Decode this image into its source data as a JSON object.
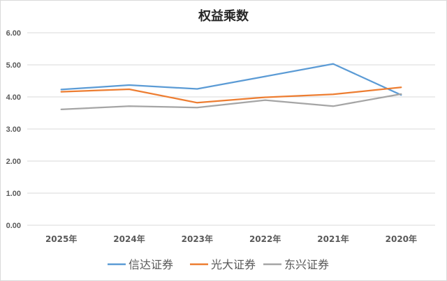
{
  "chart_data": {
    "type": "line",
    "title": "权益乘数",
    "categories": [
      "2025年",
      "2024年",
      "2023年",
      "2022年",
      "2021年",
      "2020年"
    ],
    "ylim": [
      0,
      6
    ],
    "yticks": [
      "0.00",
      "1.00",
      "2.00",
      "3.00",
      "4.00",
      "5.00",
      "6.00"
    ],
    "grid": true,
    "legend_position": "bottom",
    "series": [
      {
        "name": "信达证券",
        "color": "#5B9BD5",
        "values": [
          4.23,
          4.37,
          4.25,
          4.64,
          5.03,
          4.06
        ]
      },
      {
        "name": "光大证券",
        "color": "#ED7D31",
        "values": [
          4.16,
          4.24,
          3.82,
          3.99,
          4.08,
          4.3
        ]
      },
      {
        "name": "东兴证券",
        "color": "#A5A5A5",
        "values": [
          3.61,
          3.71,
          3.67,
          3.9,
          3.71,
          4.09
        ]
      }
    ]
  }
}
